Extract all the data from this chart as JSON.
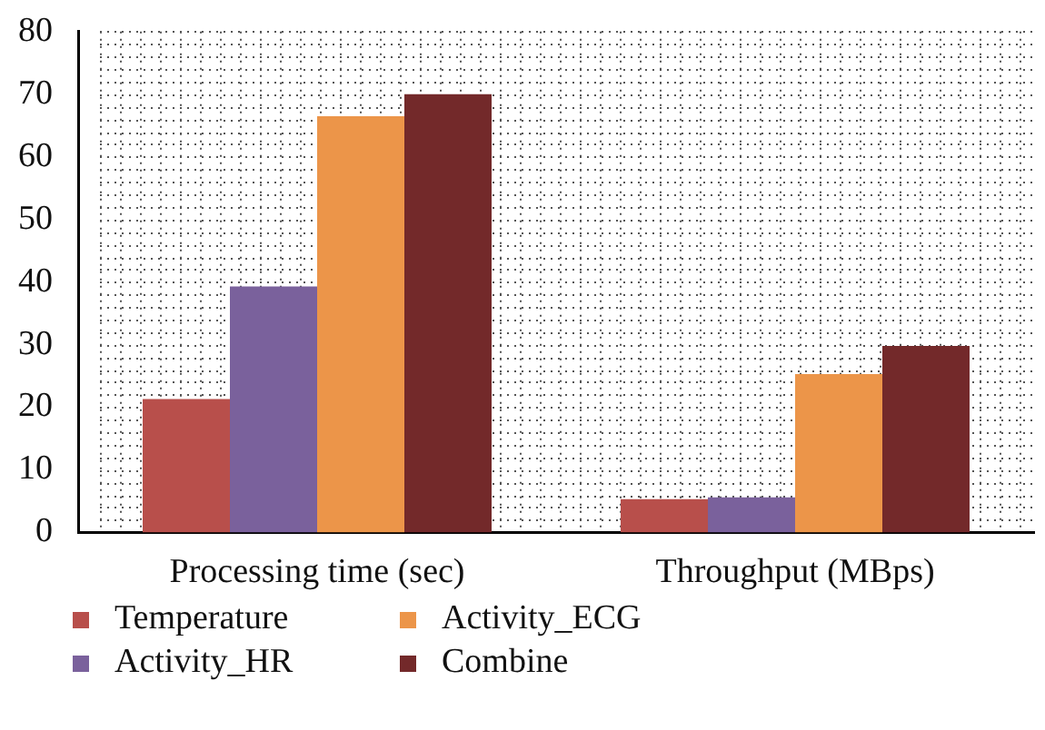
{
  "chart_data": {
    "type": "bar",
    "categories": [
      "Processing time (sec)",
      "Throughput (MBps)"
    ],
    "series": [
      {
        "name": "Temperature",
        "color": "#b84f4b",
        "values": [
          21.3,
          5.3
        ]
      },
      {
        "name": "Activity_HR",
        "color": "#7a619c",
        "values": [
          39.3,
          5.6
        ]
      },
      {
        "name": "Activity_ECG",
        "color": "#ec9549",
        "values": [
          66.5,
          25.3
        ]
      },
      {
        "name": "Combine",
        "color": "#73292a",
        "values": [
          70,
          29.8
        ]
      }
    ],
    "ylim": [
      0,
      80
    ],
    "yticks": [
      0,
      10,
      20,
      30,
      40,
      50,
      60,
      70,
      80
    ],
    "grid": true,
    "legend": "bottom"
  }
}
